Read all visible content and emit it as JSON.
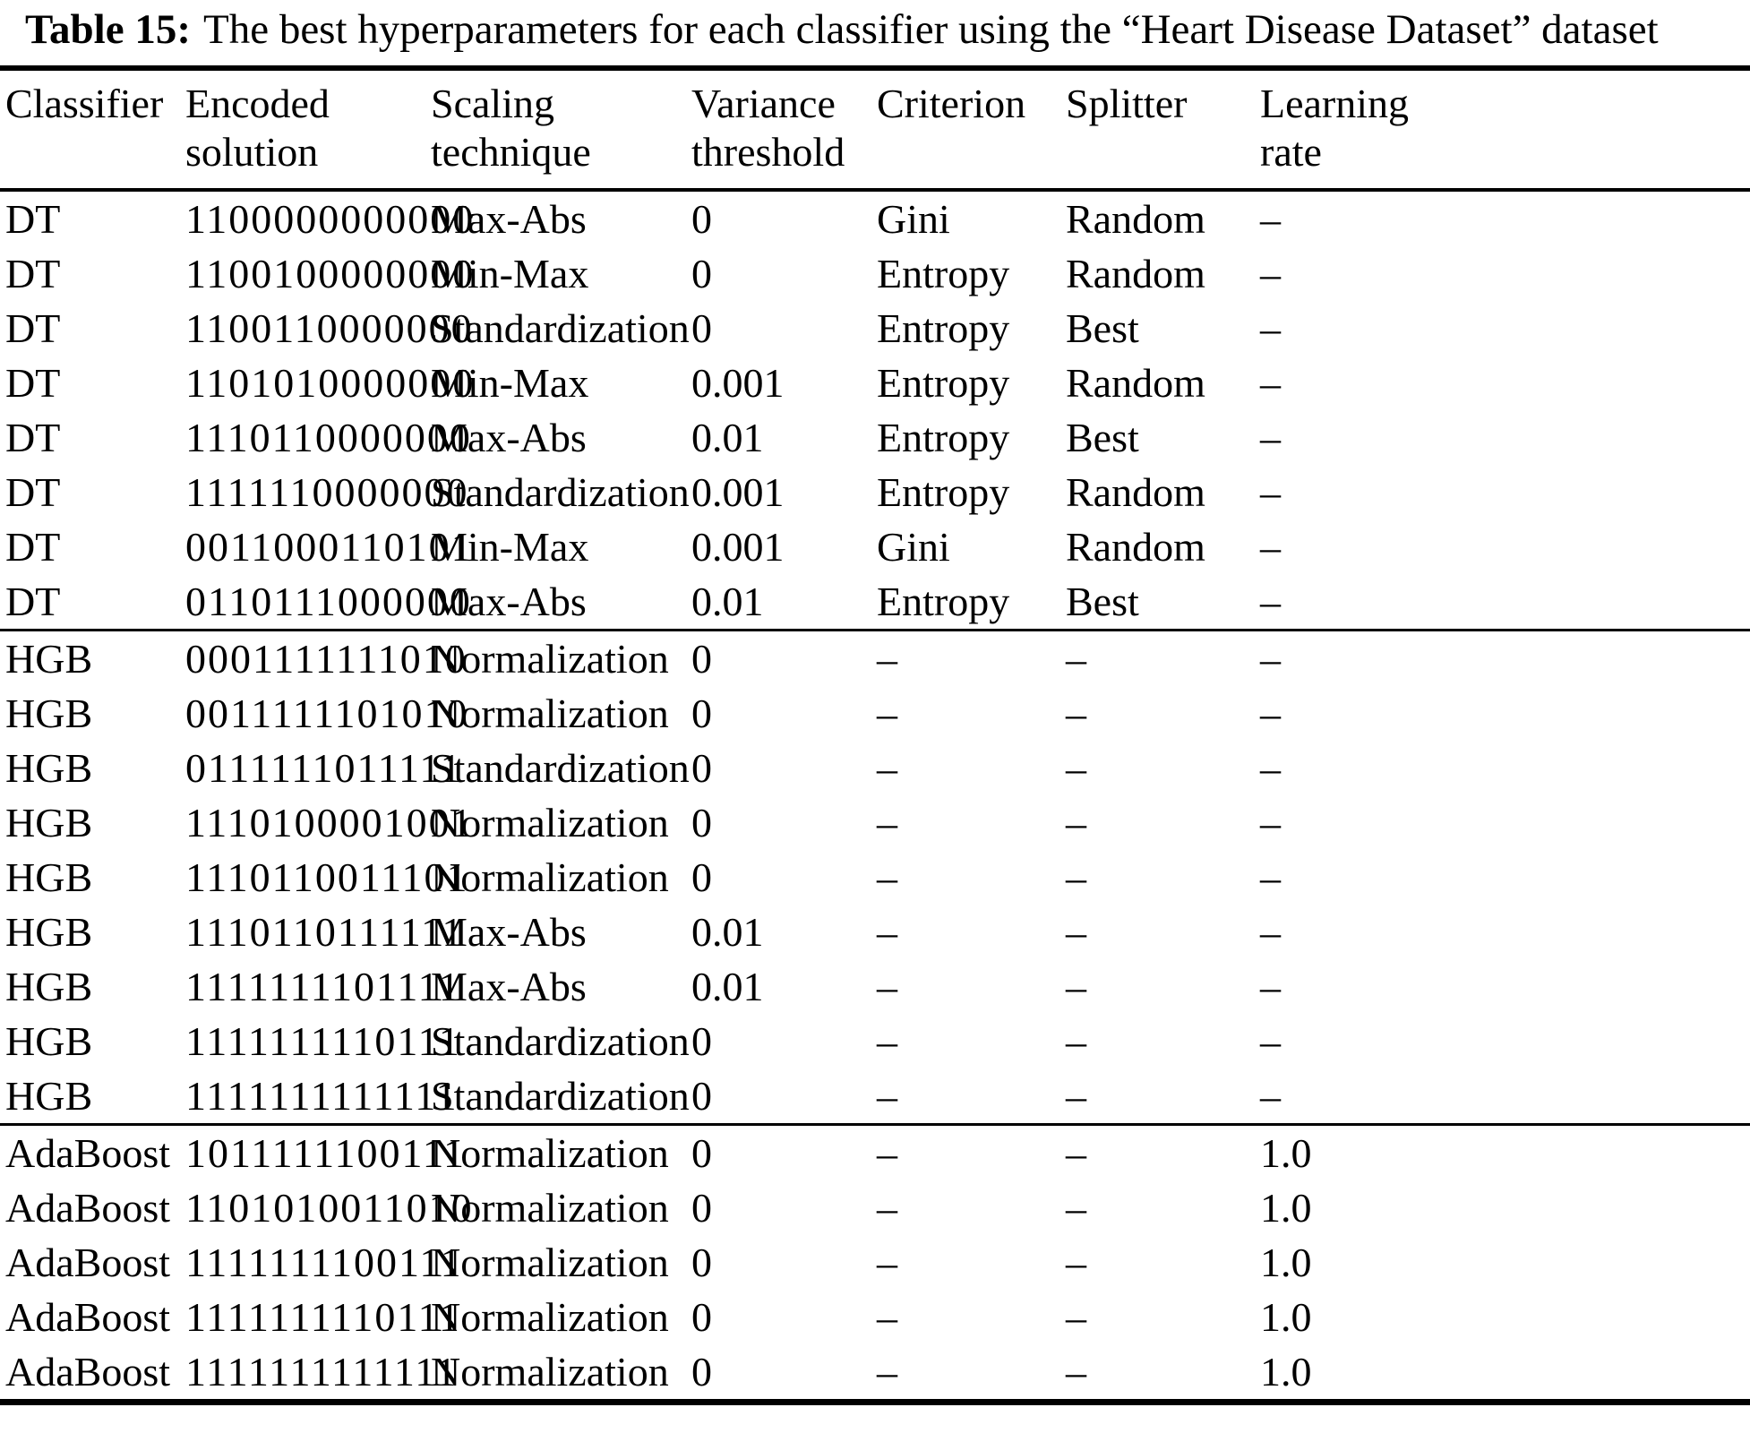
{
  "caption": {
    "label": "Table 15:",
    "text": "The best hyperparameters for each classifier using the “Heart Disease Dataset” dataset"
  },
  "table": {
    "headers": [
      "Classifier",
      "Encoded\nsolution",
      "Scaling\ntechnique",
      "Variance\nthreshold",
      "Criterion",
      "Splitter",
      "Learning\nrate"
    ],
    "groups": [
      {
        "name": "DT",
        "rows": [
          [
            "DT",
            "1100000000000",
            "Max-Abs",
            "0",
            "Gini",
            "Random",
            "–"
          ],
          [
            "DT",
            "1100100000000",
            "Min-Max",
            "0",
            "Entropy",
            "Random",
            "–"
          ],
          [
            "DT",
            "1100110000000",
            "Standardization",
            "0",
            "Entropy",
            "Best",
            "–"
          ],
          [
            "DT",
            "1101010000000",
            "Min-Max",
            "0.001",
            "Entropy",
            "Random",
            "–"
          ],
          [
            "DT",
            "1110110000000",
            "Max-Abs",
            "0.01",
            "Entropy",
            "Best",
            "–"
          ],
          [
            "DT",
            "1111110000000",
            "Standardization",
            "0.001",
            "Entropy",
            "Random",
            "–"
          ],
          [
            "DT",
            "0011000110101",
            "Min-Max",
            "0.001",
            "Gini",
            "Random",
            "–"
          ],
          [
            "DT",
            "0110111000000",
            "Max-Abs",
            "0.01",
            "Entropy",
            "Best",
            "–"
          ]
        ]
      },
      {
        "name": "HGB",
        "rows": [
          [
            "HGB",
            "0001111111010",
            "Normalization",
            "0",
            "–",
            "–",
            "–"
          ],
          [
            "HGB",
            "0011111101010",
            "Normalization",
            "0",
            "–",
            "–",
            "–"
          ],
          [
            "HGB",
            "0111111011111",
            "Standardization",
            "0",
            "–",
            "–",
            "–"
          ],
          [
            "HGB",
            "1110100001001",
            "Normalization",
            "0",
            "–",
            "–",
            "–"
          ],
          [
            "HGB",
            "1110110011101",
            "Normalization",
            "0",
            "–",
            "–",
            "–"
          ],
          [
            "HGB",
            "1110110111111",
            "Max-Abs",
            "0.01",
            "–",
            "–",
            "–"
          ],
          [
            "HGB",
            "1111111101111",
            "Max-Abs",
            "0.01",
            "–",
            "–",
            "–"
          ],
          [
            "HGB",
            "1111111110111",
            "Standardization",
            "0",
            "–",
            "–",
            "–"
          ],
          [
            "HGB",
            "1111111111111",
            "Standardization",
            "0",
            "–",
            "–",
            "–"
          ]
        ]
      },
      {
        "name": "AdaBoost",
        "rows": [
          [
            "AdaBoost",
            "1011111100111",
            "Normalization",
            "0",
            "–",
            "–",
            "1.0"
          ],
          [
            "AdaBoost",
            "1101010011010",
            "Normalization",
            "0",
            "–",
            "–",
            "1.0"
          ],
          [
            "AdaBoost",
            "1111111100111",
            "Normalization",
            "0",
            "–",
            "–",
            "1.0"
          ],
          [
            "AdaBoost",
            "1111111110111",
            "Normalization",
            "0",
            "–",
            "–",
            "1.0"
          ],
          [
            "AdaBoost",
            "1111111111111",
            "Normalization",
            "0",
            "–",
            "–",
            "1.0"
          ]
        ]
      }
    ]
  }
}
